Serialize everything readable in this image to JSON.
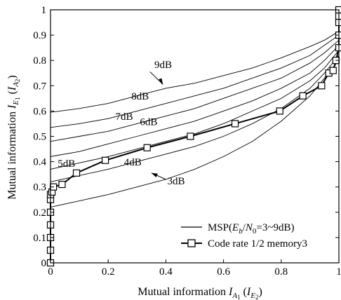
{
  "chart_data": {
    "type": "line",
    "title": "",
    "xlabel": {
      "main": "Mutual information ",
      "var": "I",
      "sub1": "A",
      "sub2": "1",
      "paren_open": " (",
      "var2": "I",
      "sub3": "E",
      "sub4": "2",
      "paren_close": ")"
    },
    "ylabel": {
      "main": "Mutual information ",
      "var": "I",
      "sub1": "E",
      "sub2": "1",
      "paren_open": " (",
      "var2": "I",
      "sub3": "A",
      "sub4": "2",
      "paren_close": ")"
    },
    "xlim": [
      0,
      1
    ],
    "ylim": [
      0,
      1
    ],
    "x_ticks": [
      0,
      0.2,
      0.4,
      0.6,
      0.8,
      1
    ],
    "x_tick_labels": [
      "0",
      "0.2",
      "0.4",
      "0.6",
      "0.8",
      "1"
    ],
    "y_ticks": [
      0,
      0.1,
      0.2,
      0.3,
      0.4,
      0.5,
      0.6,
      0.7,
      0.8,
      0.9,
      1
    ],
    "y_tick_labels": [
      "0",
      "0.1",
      "0.2",
      "0.3",
      "0.4",
      "0.5",
      "0.6",
      "0.7",
      "0.8",
      "0.9",
      "1"
    ],
    "grid": false,
    "legend": {
      "placement": "bottom-right",
      "entries": [
        {
          "label_prefix": "MSP(",
          "E": "E",
          "b": "b",
          "slash": "/",
          "N": "N",
          "zero": "0",
          "label_suffix": "=3~9dB)",
          "marker": "none"
        },
        {
          "label": "Code rate 1/2 memory3",
          "marker": "square"
        }
      ]
    },
    "series": [
      {
        "curve_label": "3dB",
        "x": [
          0,
          0.1,
          0.2,
          0.3,
          0.4,
          0.5,
          0.6,
          0.7,
          0.8,
          0.9,
          0.95,
          1
        ],
        "y": [
          0.22,
          0.245,
          0.27,
          0.3,
          0.33,
          0.37,
          0.42,
          0.48,
          0.56,
          0.66,
          0.73,
          0.8
        ]
      },
      {
        "curve_label": "4dB",
        "x": [
          0,
          0.1,
          0.2,
          0.3,
          0.4,
          0.5,
          0.6,
          0.7,
          0.8,
          0.9,
          0.95,
          1
        ],
        "y": [
          0.32,
          0.345,
          0.37,
          0.4,
          0.43,
          0.46,
          0.5,
          0.55,
          0.61,
          0.69,
          0.75,
          0.82
        ]
      },
      {
        "curve_label": "5dB",
        "x": [
          0,
          0.1,
          0.2,
          0.3,
          0.4,
          0.5,
          0.6,
          0.7,
          0.8,
          0.9,
          0.95,
          1
        ],
        "y": [
          0.37,
          0.395,
          0.42,
          0.45,
          0.48,
          0.51,
          0.55,
          0.6,
          0.65,
          0.72,
          0.77,
          0.84
        ]
      },
      {
        "curve_label": "6dB",
        "x": [
          0,
          0.1,
          0.2,
          0.3,
          0.4,
          0.5,
          0.6,
          0.7,
          0.8,
          0.9,
          0.95,
          1
        ],
        "y": [
          0.42,
          0.44,
          0.47,
          0.5,
          0.53,
          0.56,
          0.6,
          0.64,
          0.69,
          0.75,
          0.8,
          0.86
        ]
      },
      {
        "curve_label": "7dB",
        "x": [
          0,
          0.1,
          0.2,
          0.3,
          0.4,
          0.5,
          0.6,
          0.7,
          0.8,
          0.9,
          0.95,
          1
        ],
        "y": [
          0.48,
          0.5,
          0.52,
          0.55,
          0.58,
          0.61,
          0.65,
          0.69,
          0.73,
          0.79,
          0.83,
          0.88
        ]
      },
      {
        "curve_label": "8dB",
        "x": [
          0,
          0.1,
          0.2,
          0.3,
          0.4,
          0.5,
          0.6,
          0.7,
          0.8,
          0.9,
          0.95,
          1
        ],
        "y": [
          0.535,
          0.55,
          0.57,
          0.6,
          0.63,
          0.66,
          0.69,
          0.73,
          0.77,
          0.82,
          0.86,
          0.9
        ]
      },
      {
        "curve_label": "9dB",
        "x": [
          0,
          0.1,
          0.2,
          0.3,
          0.4,
          0.5,
          0.6,
          0.7,
          0.8,
          0.9,
          0.95,
          1
        ],
        "y": [
          0.595,
          0.61,
          0.63,
          0.66,
          0.69,
          0.71,
          0.74,
          0.77,
          0.81,
          0.855,
          0.88,
          0.915
        ]
      }
    ],
    "code_curve": {
      "name": "Code rate 1/2 memory3",
      "x": [
        0,
        0,
        0,
        0,
        0,
        0,
        0,
        0.005,
        0.01,
        0.04,
        0.09,
        0.19,
        0.335,
        0.485,
        0.64,
        0.795,
        0.875,
        0.94,
        0.965,
        0.98,
        0.99,
        1,
        1,
        1,
        1,
        1
      ],
      "y": [
        0,
        0.05,
        0.1,
        0.15,
        0.2,
        0.25,
        0.27,
        0.28,
        0.3,
        0.31,
        0.355,
        0.405,
        0.455,
        0.5,
        0.55,
        0.6,
        0.66,
        0.7,
        0.75,
        0.76,
        0.8,
        0.85,
        0.9,
        0.95,
        0.975,
        1
      ]
    },
    "annotations": [
      {
        "text": "9dB",
        "x": 0.36,
        "y": 0.77
      },
      {
        "text": "8dB",
        "x": 0.28,
        "y": 0.645
      },
      {
        "text": "7dB",
        "x": 0.225,
        "y": 0.565
      },
      {
        "text": "6dB",
        "x": 0.31,
        "y": 0.545
      },
      {
        "text": "5dB",
        "x": 0.025,
        "y": 0.38
      },
      {
        "text": "4dB",
        "x": 0.255,
        "y": 0.385
      },
      {
        "text": "3dB",
        "x": 0.405,
        "y": 0.31
      }
    ]
  }
}
